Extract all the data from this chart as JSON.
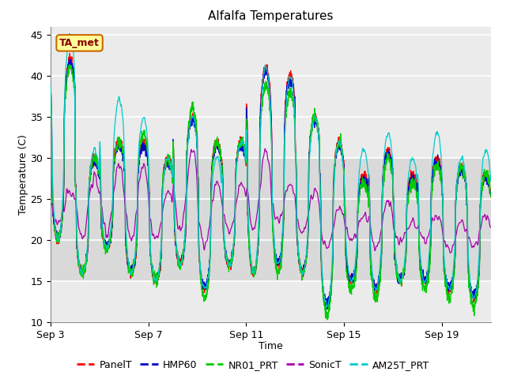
{
  "title": "Alfalfa Temperatures",
  "xlabel": "Time",
  "ylabel": "Temperature (C)",
  "ylim": [
    10,
    46
  ],
  "yticks": [
    10,
    15,
    20,
    25,
    30,
    35,
    40,
    45
  ],
  "background_color": "#ffffff",
  "plot_bg_color": "#ebebeb",
  "grid_band_low": 15,
  "grid_band_high": 30,
  "annotation_text": "TA_met",
  "annotation_bg": "#ffff99",
  "annotation_border": "#cc6600",
  "series_colors": {
    "PanelT": "#ff0000",
    "HMP60": "#0000cc",
    "NR01_PRT": "#00cc00",
    "SonicT": "#aa00aa",
    "AM25T_PRT": "#00cccc"
  },
  "legend_order": [
    "PanelT",
    "HMP60",
    "NR01_PRT",
    "SonicT",
    "AM25T_PRT"
  ],
  "xtick_labels": [
    "Sep 3",
    "Sep 7",
    "Sep 11",
    "Sep 15",
    "Sep 19"
  ],
  "xtick_positions": [
    0,
    4,
    8,
    12,
    16
  ],
  "n_days": 18,
  "pts_per_day": 144,
  "day_peaks": [
    42,
    30,
    32,
    32,
    30,
    35,
    32,
    32,
    41,
    40,
    35,
    32,
    28,
    31,
    28,
    30,
    29,
    28
  ],
  "night_mins": [
    20,
    16,
    19,
    16,
    15,
    17,
    14,
    17,
    16,
    17,
    16,
    12,
    15,
    14,
    15,
    15,
    14,
    13
  ],
  "am25_peaks": [
    45,
    31,
    37,
    35,
    30,
    35,
    30,
    32,
    41,
    40,
    35,
    32,
    31,
    33,
    30,
    33,
    30,
    31
  ],
  "am25_nights": [
    20,
    16,
    19,
    16,
    15,
    17,
    14,
    17,
    16,
    17,
    16,
    12,
    15,
    14,
    15,
    15,
    14,
    13
  ],
  "nr01_peaks": [
    41,
    30,
    32,
    33,
    30,
    36,
    32,
    32,
    39,
    38,
    35,
    32,
    27,
    30,
    27,
    29,
    29,
    28
  ],
  "nr01_nights": [
    20,
    16,
    19,
    16,
    15,
    17,
    13,
    17,
    16,
    16,
    16,
    11,
    14,
    13,
    15,
    14,
    13,
    12
  ],
  "sonic_peaks": [
    26,
    28,
    29,
    29,
    26,
    31,
    27,
    27,
    31,
    27,
    26,
    24,
    23,
    25,
    22,
    23,
    22,
    23
  ],
  "sonic_nights": [
    22,
    20,
    21,
    20,
    20,
    21,
    19,
    21,
    21,
    22,
    21,
    19,
    20,
    19,
    20,
    20,
    19,
    19
  ]
}
